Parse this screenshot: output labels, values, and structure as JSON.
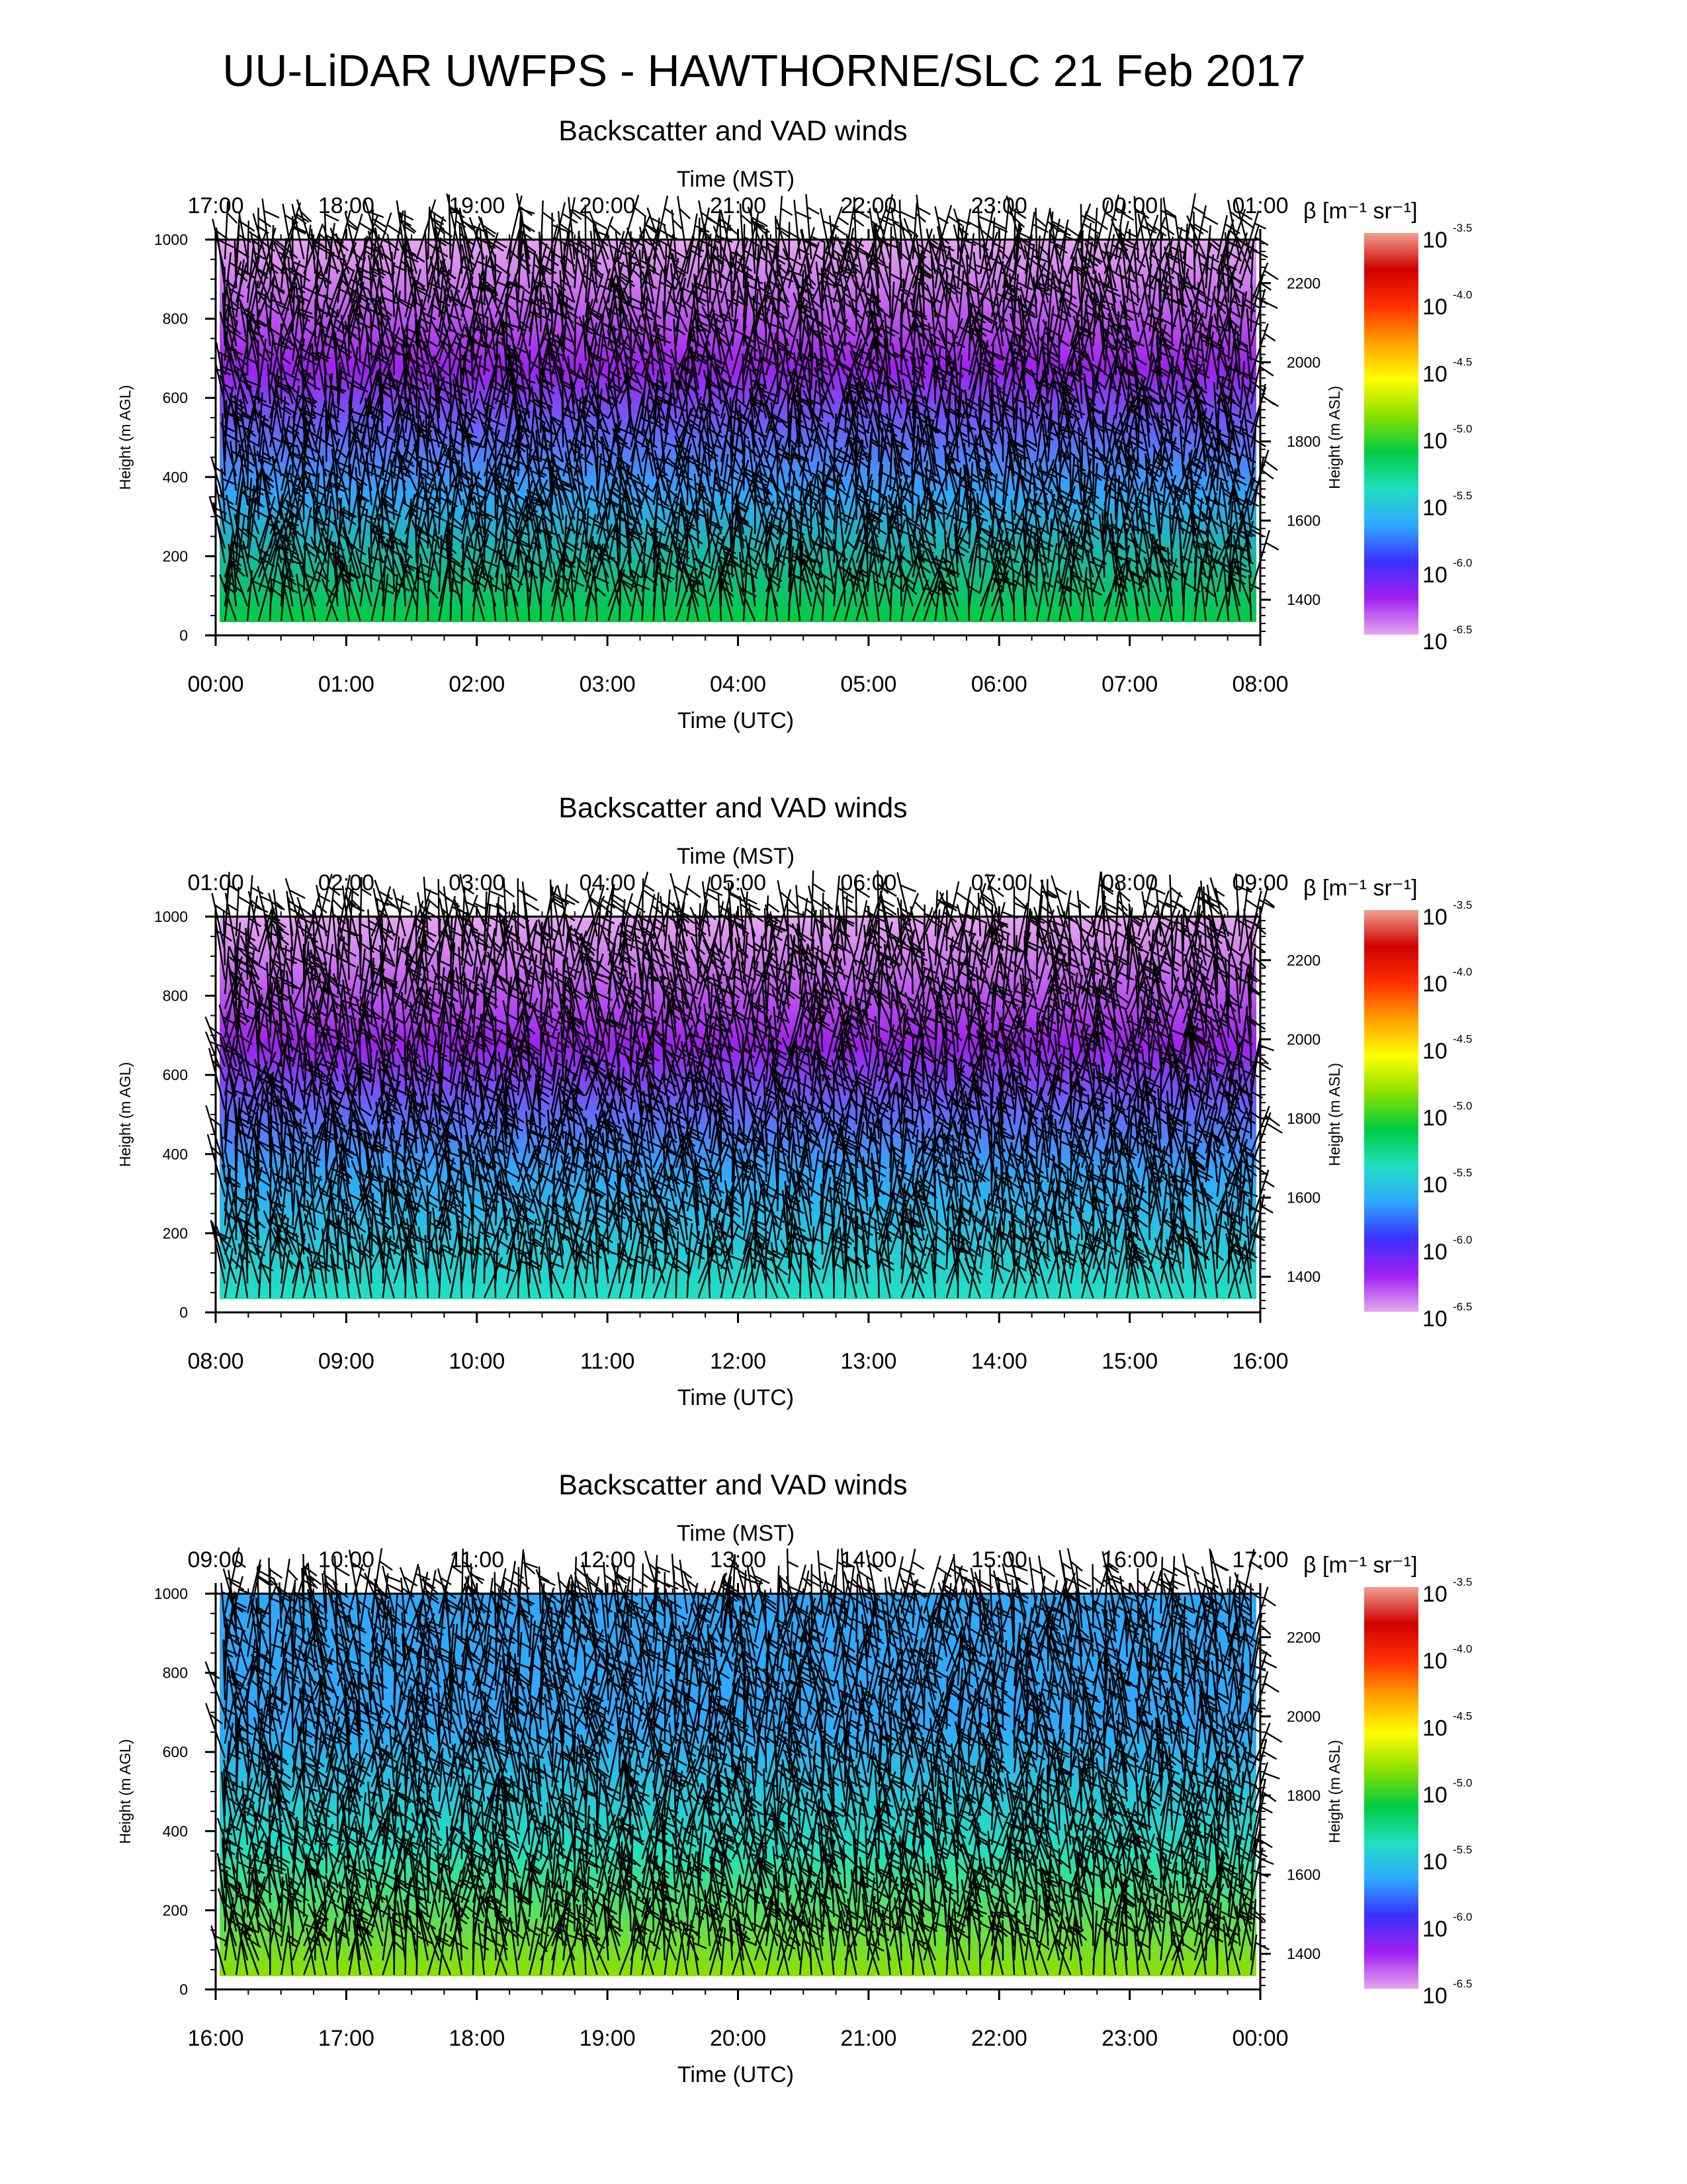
{
  "figure_title": "UU-LiDAR UWFPS - HAWTHORNE/SLC 21 Feb 2017",
  "colors": {
    "barbs": "#000000",
    "colormap": [
      "#e6a6f0",
      "#a020f0",
      "#3a30ff",
      "#2fa8ff",
      "#20e0c0",
      "#00cc40",
      "#8ce000",
      "#ffff00",
      "#ffa000",
      "#ff3000",
      "#d00000",
      "#f0a090"
    ]
  },
  "chart_data": [
    {
      "type": "heatmap",
      "title": "Backscatter and VAD winds",
      "top_axis_title": "Time (MST)",
      "top_ticks": [
        "17:00",
        "18:00",
        "19:00",
        "20:00",
        "21:00",
        "22:00",
        "23:00",
        "00:00",
        "01:00"
      ],
      "bottom_axis_title": "Time (UTC)",
      "bottom_ticks": [
        "00:00",
        "01:00",
        "02:00",
        "03:00",
        "04:00",
        "05:00",
        "06:00",
        "07:00",
        "08:00"
      ],
      "ylabel": "Height (m AGL)",
      "yticks": [
        "0",
        "200",
        "400",
        "600",
        "800",
        "1000"
      ],
      "ylim": [
        0,
        1000
      ],
      "ylabel_right": "Height (m ASL)",
      "yticks_right": [
        "1400",
        "1600",
        "1800",
        "2000",
        "2200"
      ],
      "ylim_right": [
        1310,
        2310
      ],
      "colorbar_title": "β [m⁻¹ sr⁻¹]",
      "colorbar_ticks": [
        {
          "base": "10",
          "exp": "-3.5"
        },
        {
          "base": "10",
          "exp": "-4.0"
        },
        {
          "base": "10",
          "exp": "-4.5"
        },
        {
          "base": "10",
          "exp": "-5.0"
        },
        {
          "base": "10",
          "exp": "-5.5"
        },
        {
          "base": "10",
          "exp": "-6.0"
        },
        {
          "base": "10",
          "exp": "-6.5"
        }
      ],
      "clim": [
        -6.5,
        -3.5
      ],
      "log10_backscatter_profile": [
        -5.2,
        -5.6,
        -6.1,
        -6.4
      ]
    },
    {
      "type": "heatmap",
      "title": "Backscatter and VAD winds",
      "top_axis_title": "Time (MST)",
      "top_ticks": [
        "01:00",
        "02:00",
        "03:00",
        "04:00",
        "05:00",
        "06:00",
        "07:00",
        "08:00",
        "09:00"
      ],
      "bottom_axis_title": "Time (UTC)",
      "bottom_ticks": [
        "08:00",
        "09:00",
        "10:00",
        "11:00",
        "12:00",
        "13:00",
        "14:00",
        "15:00",
        "16:00"
      ],
      "ylabel": "Height (m AGL)",
      "yticks": [
        "0",
        "200",
        "400",
        "600",
        "800",
        "1000"
      ],
      "ylim": [
        0,
        1000
      ],
      "ylabel_right": "Height (m ASL)",
      "yticks_right": [
        "1400",
        "1600",
        "1800",
        "2000",
        "2200"
      ],
      "ylim_right": [
        1310,
        2310
      ],
      "colorbar_title": "β [m⁻¹ sr⁻¹]",
      "colorbar_ticks": [
        {
          "base": "10",
          "exp": "-3.5"
        },
        {
          "base": "10",
          "exp": "-4.0"
        },
        {
          "base": "10",
          "exp": "-4.5"
        },
        {
          "base": "10",
          "exp": "-5.0"
        },
        {
          "base": "10",
          "exp": "-5.5"
        },
        {
          "base": "10",
          "exp": "-6.0"
        },
        {
          "base": "10",
          "exp": "-6.5"
        }
      ],
      "clim": [
        -6.5,
        -3.5
      ],
      "log10_backscatter_profile": [
        -5.3,
        -5.8,
        -6.2,
        -6.4
      ]
    },
    {
      "type": "heatmap",
      "title": "Backscatter and VAD winds",
      "top_axis_title": "Time (MST)",
      "top_ticks": [
        "09:00",
        "10:00",
        "11:00",
        "12:00",
        "13:00",
        "14:00",
        "15:00",
        "16:00",
        "17:00"
      ],
      "bottom_axis_title": "Time (UTC)",
      "bottom_ticks": [
        "16:00",
        "17:00",
        "18:00",
        "19:00",
        "20:00",
        "21:00",
        "22:00",
        "23:00",
        "00:00"
      ],
      "ylabel": "Height (m AGL)",
      "yticks": [
        "0",
        "200",
        "400",
        "600",
        "800",
        "1000"
      ],
      "ylim": [
        0,
        1000
      ],
      "ylabel_right": "Height (m ASL)",
      "yticks_right": [
        "1400",
        "1600",
        "1800",
        "2000",
        "2200"
      ],
      "ylim_right": [
        1310,
        2310
      ],
      "colorbar_title": "β [m⁻¹ sr⁻¹]",
      "colorbar_ticks": [
        {
          "base": "10",
          "exp": "-3.5"
        },
        {
          "base": "10",
          "exp": "-4.0"
        },
        {
          "base": "10",
          "exp": "-4.5"
        },
        {
          "base": "10",
          "exp": "-5.0"
        },
        {
          "base": "10",
          "exp": "-5.5"
        },
        {
          "base": "10",
          "exp": "-6.0"
        },
        {
          "base": "10",
          "exp": "-6.5"
        }
      ],
      "clim": [
        -6.5,
        -3.5
      ],
      "log10_backscatter_profile": [
        -4.9,
        -5.3,
        -5.6,
        -5.7
      ]
    }
  ]
}
